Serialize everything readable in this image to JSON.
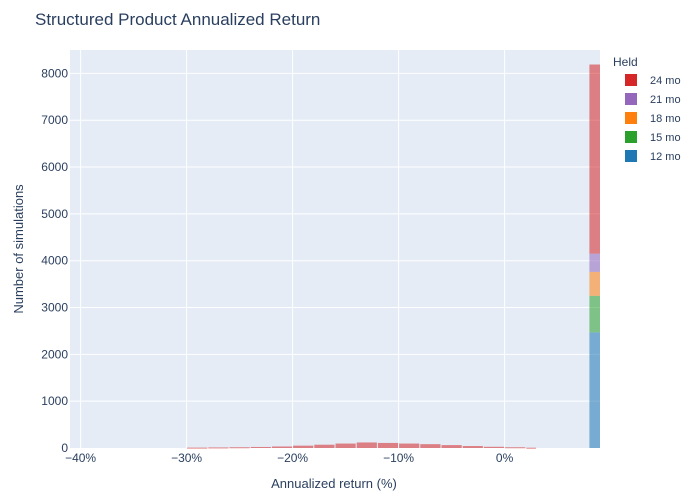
{
  "chart_data": {
    "type": "bar",
    "barmode": "stack",
    "title": "Structured Product Annualized Return",
    "xlabel": "Annualized return (%)",
    "ylabel": "Number of simulations",
    "xlim": [
      -41,
      9
    ],
    "ylim": [
      0,
      8500
    ],
    "grid": true,
    "opacity": 0.55,
    "x_ticks": [
      -40,
      -30,
      -20,
      -10,
      0
    ],
    "x_tick_labels": [
      "−40%",
      "−30%",
      "−20%",
      "−10%",
      "0%"
    ],
    "y_ticks": [
      0,
      1000,
      2000,
      3000,
      4000,
      5000,
      6000,
      7000,
      8000
    ],
    "legend": {
      "title": "Held",
      "placement": "right",
      "items": [
        {
          "name": "24 mo",
          "color": "#d62728"
        },
        {
          "name": "21 mo",
          "color": "#9467bd"
        },
        {
          "name": "18 mo",
          "color": "#ff7f0e"
        },
        {
          "name": "15 mo",
          "color": "#2ca02c"
        },
        {
          "name": "12 mo",
          "color": "#1f77b4"
        }
      ]
    },
    "autocall_bin": {
      "x0": 8,
      "x1": 9,
      "series": [
        {
          "name": "12 mo",
          "value": 2470
        },
        {
          "name": "15 mo",
          "value": 780
        },
        {
          "name": "18 mo",
          "value": 510
        },
        {
          "name": "21 mo",
          "value": 390
        },
        {
          "name": "24 mo",
          "value": 4040
        }
      ]
    },
    "loss_bins_24mo": [
      {
        "x0": -30,
        "x1": -28,
        "value": 8
      },
      {
        "x0": -28,
        "x1": -26,
        "value": 12
      },
      {
        "x0": -26,
        "x1": -24,
        "value": 16
      },
      {
        "x0": -24,
        "x1": -22,
        "value": 22
      },
      {
        "x0": -22,
        "x1": -20,
        "value": 32
      },
      {
        "x0": -20,
        "x1": -18,
        "value": 50
      },
      {
        "x0": -18,
        "x1": -16,
        "value": 70
      },
      {
        "x0": -16,
        "x1": -14,
        "value": 95
      },
      {
        "x0": -14,
        "x1": -12,
        "value": 118
      },
      {
        "x0": -12,
        "x1": -10,
        "value": 108
      },
      {
        "x0": -10,
        "x1": -8,
        "value": 95
      },
      {
        "x0": -8,
        "x1": -6,
        "value": 82
      },
      {
        "x0": -6,
        "x1": -4,
        "value": 62
      },
      {
        "x0": -4,
        "x1": -2,
        "value": 42
      },
      {
        "x0": -2,
        "x1": 0,
        "value": 26
      },
      {
        "x0": 0,
        "x1": 2,
        "value": 16
      },
      {
        "x0": 2,
        "x1": 3,
        "value": 6
      }
    ]
  }
}
